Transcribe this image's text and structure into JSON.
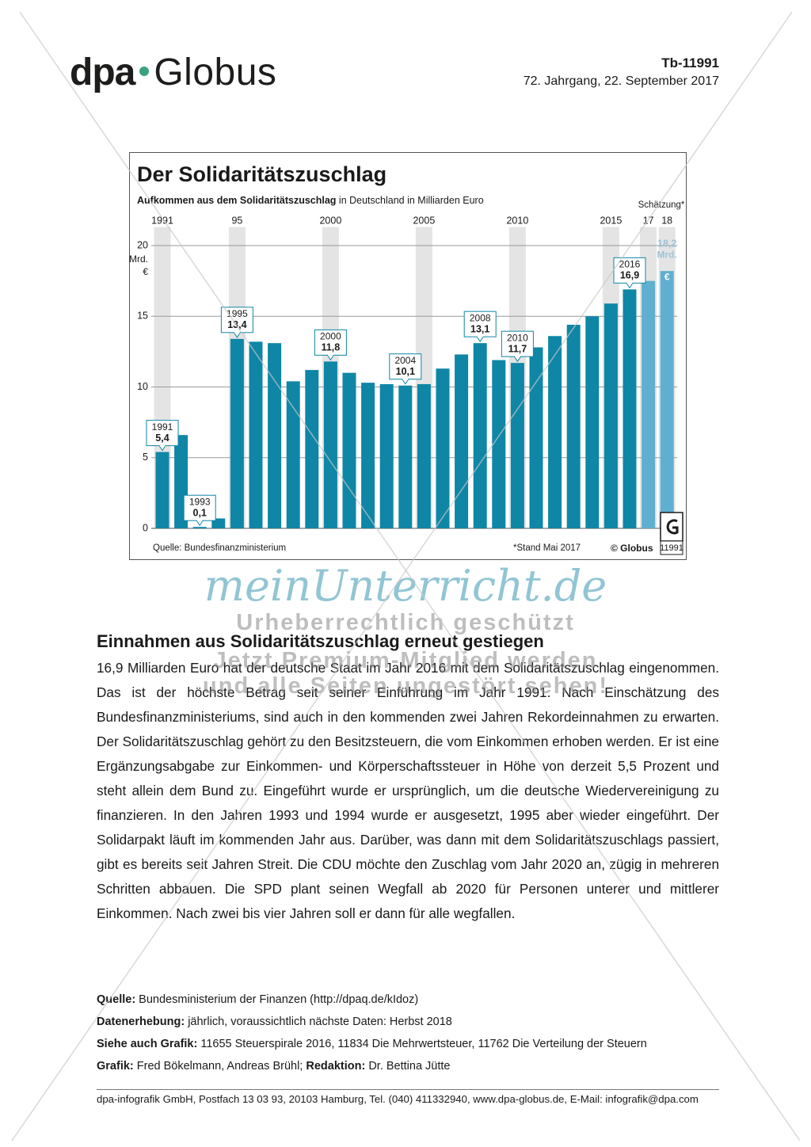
{
  "header": {
    "brand": [
      "dpa",
      "Globus"
    ],
    "code": "Tb-11991",
    "date": "72. Jahrgang, 22. September 2017"
  },
  "chart_data": {
    "type": "bar",
    "title": "Der Solidaritätszuschlag",
    "subtitle_bold": "Aufkommen aus dem Solidaritätszuschlag",
    "subtitle": " in Deutschland in Milliarden Euro",
    "estimate_note": "Schätzung*",
    "categories": [
      "1991",
      null,
      null,
      null,
      "95",
      null,
      null,
      null,
      null,
      "2000",
      null,
      null,
      null,
      null,
      "2005",
      null,
      null,
      null,
      null,
      "2010",
      null,
      null,
      null,
      null,
      "2015",
      null,
      "17",
      "18"
    ],
    "values": [
      5.4,
      6.6,
      0.1,
      0.7,
      13.4,
      13.2,
      13.1,
      10.4,
      11.2,
      11.8,
      11.0,
      10.3,
      10.2,
      10.1,
      10.2,
      11.3,
      12.3,
      13.1,
      11.9,
      11.7,
      12.8,
      13.6,
      14.4,
      15.0,
      15.9,
      16.9,
      17.5,
      18.2
    ],
    "value_labels": [
      "5,4",
      null,
      "0,1",
      null,
      "13,4",
      null,
      null,
      null,
      null,
      "11,8",
      null,
      null,
      null,
      "10,1",
      null,
      null,
      null,
      "13,1",
      null,
      "11,7",
      null,
      null,
      null,
      null,
      null,
      "16,9",
      null,
      "18,2"
    ],
    "callout_labels": [
      "1991",
      null,
      "1993",
      null,
      "1995",
      null,
      null,
      null,
      null,
      "2000",
      null,
      null,
      null,
      "2004",
      null,
      null,
      null,
      "2008",
      null,
      "2010",
      null,
      null,
      null,
      null,
      null,
      "2016",
      null,
      null
    ],
    "colors": [
      "#0f86a6",
      "#0f86a6",
      "#0f86a6",
      "#0f86a6",
      "#0f86a6",
      "#0f86a6",
      "#0f86a6",
      "#0f86a6",
      "#0f86a6",
      "#0f86a6",
      "#0f86a6",
      "#0f86a6",
      "#0f86a6",
      "#0f86a6",
      "#0f86a6",
      "#0f86a6",
      "#0f86a6",
      "#0f86a6",
      "#0f86a6",
      "#0f86a6",
      "#0f86a6",
      "#0f86a6",
      "#0f86a6",
      "#0f86a6",
      "#0f86a6",
      "#0f86a6",
      "#5fb0d0",
      "#5fb0d0"
    ],
    "value_unit": [
      "Mrd.",
      "€"
    ],
    "y_unit": [
      "Mrd.",
      "€"
    ],
    "ylim": [
      0,
      21.2
    ],
    "yticks": [
      0,
      5,
      10,
      15,
      20
    ],
    "grid": true,
    "source": "Quelle: Bundesfinanzministerium",
    "note": "*Stand Mai 2017",
    "copyright": "© Globus",
    "graphic_number": "11991"
  },
  "watermark": {
    "site": "meinUnterricht.de",
    "lines": [
      "Urheberrechtlich geschützt",
      "Jetzt Premium-Mitglied werden",
      "und alle Seiten ungestört sehen!"
    ]
  },
  "article": {
    "headline": "Einnahmen aus Solidaritätszuschlag erneut gestiegen",
    "text": "16,9 Milliarden Euro hat der deutsche Staat im Jahr 2016 mit dem Solidaritätszuschlag eingenommen. Das ist der höchste Betrag seit seiner Einführung im Jahr 1991. Nach Einschätzung des Bundesfinanzministeriums, sind auch in den kommenden zwei Jahren Rekordeinnahmen zu erwarten. Der Solidaritätszuschlag gehört zu den Besitzsteuern, die vom Einkommen erhoben werden. Er ist eine Ergänzungsabgabe zur Einkommen- und Körperschaftssteuer in Höhe von derzeit 5,5 Prozent und steht allein dem Bund zu. Eingeführt wurde er ursprünglich, um die deutsche Wiedervereinigung zu finanzieren. In den Jahren 1993 und 1994 wurde er ausgesetzt, 1995 aber wieder eingeführt. Der Solidarpakt läuft im kommenden Jahr aus. Darüber, was dann mit dem Solidaritätszuschlags passiert, gibt es bereits seit Jahren Streit. Die CDU möchte den Zuschlag vom Jahr 2020 an, zügig in mehreren Schritten abbauen. Die SPD plant seinen Wegfall ab 2020 für Personen unterer und mittlerer Einkommen. Nach zwei bis vier Jahren soll er dann für alle wegfallen."
  },
  "meta": [
    [
      {
        "label": "Quelle:",
        "text": " Bundesministerium der Finanzen (http://dpaq.de/kIdoz)"
      }
    ],
    [
      {
        "label": "Datenerhebung:",
        "text": " jährlich, voraussichtlich nächste Daten: Herbst 2018"
      }
    ],
    [
      {
        "label": "Siehe auch Grafik:",
        "text": " 11655 Steuerspirale 2016, 11834 Die Mehrwertsteuer, 11762 Die Verteilung der Steuern"
      }
    ],
    [
      {
        "label": "Grafik:",
        "text": " Fred Bökelmann, Andreas Brühl; "
      },
      {
        "label": "Redaktion:",
        "text": " Dr. Bettina Jütte"
      }
    ]
  ],
  "footer": "dpa-infografik GmbH, Postfach 13 03 93, 20103 Hamburg, Tel. (040) 411332940, www.dpa-globus.de, E-Mail: infografik@dpa.com"
}
